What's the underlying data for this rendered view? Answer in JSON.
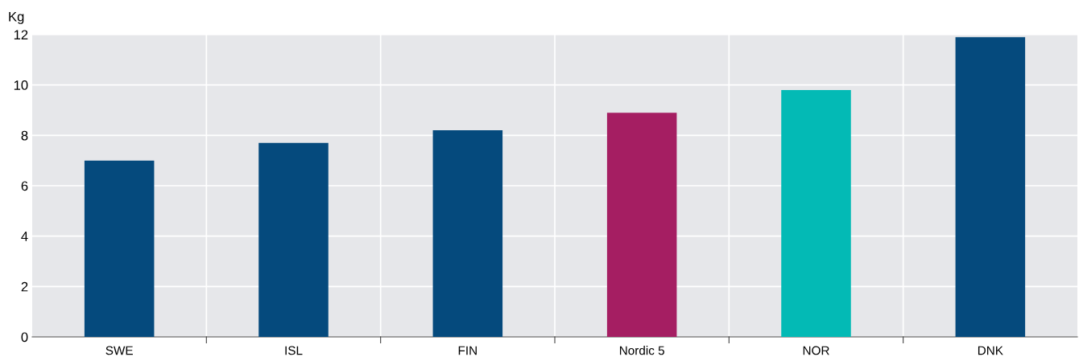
{
  "chart_data": {
    "type": "bar",
    "ylabel": "Kg",
    "categories": [
      "SWE",
      "ISL",
      "FIN",
      "Nordic 5",
      "NOR",
      "DNK"
    ],
    "values": [
      7.0,
      7.7,
      8.2,
      8.9,
      9.8,
      11.9
    ],
    "colors": [
      "#054a7d",
      "#054a7d",
      "#054a7d",
      "#a51e62",
      "#03bab5",
      "#054a7d"
    ],
    "ylim": [
      0,
      12
    ],
    "yticks": [
      0,
      2,
      4,
      6,
      8,
      10,
      12
    ],
    "grid": true,
    "legend": false
  }
}
